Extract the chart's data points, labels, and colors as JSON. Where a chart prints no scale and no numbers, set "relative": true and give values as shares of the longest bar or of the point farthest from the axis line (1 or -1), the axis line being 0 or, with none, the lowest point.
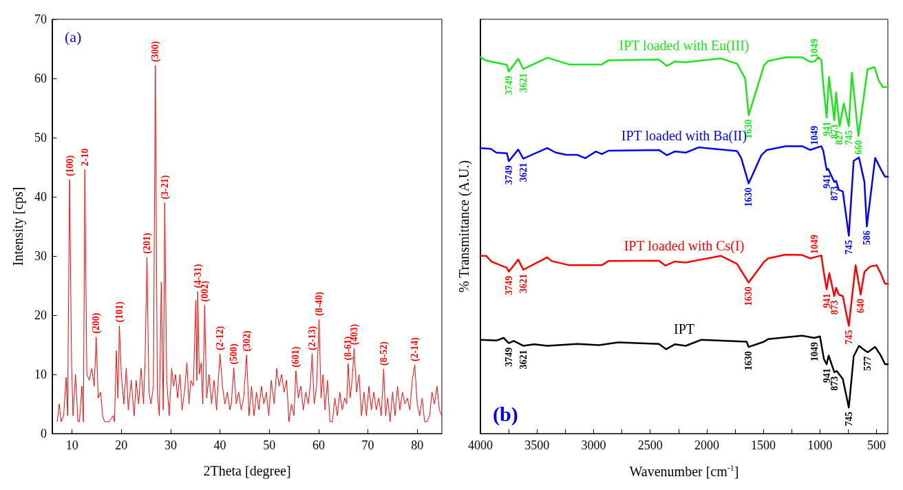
{
  "chart_data": [
    {
      "type": "line",
      "xlabel": "2Theta [degree]",
      "ylabel": "Intensity [cps]",
      "xlim": [
        6,
        85
      ],
      "ylim": [
        0,
        70
      ],
      "xticks": [
        10,
        20,
        30,
        40,
        50,
        60,
        70,
        80
      ],
      "yticks": [
        0,
        10,
        20,
        30,
        40,
        50,
        60,
        70
      ],
      "x": [
        7,
        7.4,
        7.8,
        8.3,
        8.8,
        9.1,
        9.5,
        9.9,
        10.2,
        10.7,
        11.2,
        11.5,
        12,
        12.3,
        12.6,
        13,
        13.5,
        14,
        14.5,
        14.9,
        15.3,
        15.8,
        16.2,
        16.6,
        17.5,
        18.3,
        18.6,
        19,
        19.3,
        19.6,
        20,
        20.5,
        21,
        21.4,
        22,
        22.6,
        23,
        23.5,
        24,
        24.5,
        24.8,
        25.2,
        25.6,
        26,
        26.5,
        26.9,
        27.3,
        27.7,
        28.1,
        28.5,
        28.8,
        29.2,
        29.7,
        30.2,
        30.6,
        31,
        31.4,
        31.9,
        32.3,
        32.8,
        33.3,
        33.7,
        34.1,
        34.6,
        35.1,
        35.3,
        35.5,
        35.8,
        36.2,
        36.5,
        36.9,
        37.3,
        37.8,
        38.3,
        38.8,
        39.3,
        40,
        40.5,
        41,
        41.5,
        42,
        42.3,
        42.8,
        43.3,
        43.8,
        44.3,
        44.8,
        45.4,
        45.9,
        46.4,
        46.9,
        47.4,
        47.9,
        48.4,
        48.9,
        49.4,
        49.9,
        50.4,
        51,
        51.5,
        52,
        52.5,
        53,
        53.5,
        54,
        54.5,
        55,
        55.4,
        55.9,
        56.4,
        56.9,
        57.4,
        57.9,
        58.3,
        58.7,
        59.1,
        59.6,
        60.1,
        60.5,
        60.9,
        61.3,
        61.8,
        62.3,
        62.8,
        63.3,
        63.8,
        64.3,
        64.8,
        65.3,
        65.7,
        66,
        66.4,
        66.8,
        67.2,
        67.7,
        68.2,
        68.7,
        69.2,
        69.7,
        70.2,
        70.7,
        71.2,
        71.7,
        72.2,
        72.7,
        73.2,
        73.6,
        74,
        74.5,
        75,
        75.5,
        76,
        76.5,
        77,
        77.5,
        78,
        78.5,
        79,
        79.5,
        80,
        80.5,
        81,
        81.5,
        82,
        82.5,
        83,
        83.5,
        84,
        84.5,
        85
      ],
      "series": [
        {
          "color": "#ff0000",
          "values": [
            2,
            5,
            2,
            3,
            9.5,
            3,
            42.9,
            12,
            3,
            10,
            2,
            2,
            8,
            2,
            44.6,
            10,
            9,
            11,
            8,
            16.3,
            6,
            7,
            3,
            2,
            2,
            3,
            2,
            14,
            6,
            18.2,
            10,
            5,
            11,
            4,
            9,
            3,
            9,
            5,
            11,
            5,
            12,
            29.8,
            7,
            5,
            8,
            62.2,
            7,
            3,
            25.6,
            4,
            39,
            9,
            3,
            11,
            8,
            10,
            6,
            10,
            4,
            7,
            12,
            5,
            9,
            8,
            22.5,
            9,
            24,
            10,
            12,
            5,
            21.7,
            6,
            10,
            5,
            9,
            4,
            13.5,
            8,
            5,
            7,
            4,
            5,
            11.1,
            5,
            7,
            4,
            6,
            13.3,
            3,
            8,
            3,
            7,
            4,
            8,
            5,
            7,
            3,
            9,
            5,
            11,
            8,
            10,
            7,
            9,
            2,
            5,
            3,
            10.6,
            6,
            8,
            4,
            7,
            5,
            8,
            13.5,
            5,
            8,
            19.3,
            6,
            10,
            4,
            9,
            2,
            2,
            6,
            3,
            7,
            4,
            6,
            5,
            11.8,
            6,
            9,
            14.4,
            7,
            10,
            3,
            7,
            3,
            8,
            4,
            7,
            4,
            6,
            3,
            10.9,
            3,
            6,
            2,
            7,
            3,
            8,
            4,
            7,
            5,
            6,
            4,
            9,
            11.6,
            5,
            3,
            6,
            2,
            2,
            3,
            7,
            5,
            8,
            4,
            3
          ]
        }
      ],
      "annotations": [
        "(a)",
        {
          "text": "(100)",
          "x": 9.5,
          "y": 42.9
        },
        {
          "text": "2-10",
          "x": 12.6,
          "y": 44.6
        },
        {
          "text": "(200)",
          "x": 14.9,
          "y": 16.3
        },
        {
          "text": "(101)",
          "x": 19.6,
          "y": 18.2
        },
        {
          "text": "(201)",
          "x": 25.2,
          "y": 29.8
        },
        {
          "text": "(300)",
          "x": 26.9,
          "y": 62.2
        },
        {
          "text": "(3-21)",
          "x": 28.8,
          "y": 39
        },
        {
          "text": "(4-31)",
          "x": 35.5,
          "y": 24
        },
        {
          "text": "(002)",
          "x": 36.9,
          "y": 21.7
        },
        {
          "text": "(2-12)",
          "x": 40,
          "y": 13.5
        },
        {
          "text": "(500)",
          "x": 42.8,
          "y": 11.1
        },
        {
          "text": "(302)",
          "x": 45.4,
          "y": 13.3
        },
        {
          "text": "(601)",
          "x": 55.4,
          "y": 10.6
        },
        {
          "text": "(2-13)",
          "x": 58.7,
          "y": 13.5
        },
        {
          "text": "(8-40)",
          "x": 60.1,
          "y": 19.3
        },
        {
          "text": "(8-61)",
          "x": 66,
          "y": 11.8
        },
        {
          "text": "(403)",
          "x": 67.2,
          "y": 14.4
        },
        {
          "text": "(8-52)",
          "x": 73.2,
          "y": 10.9
        },
        {
          "text": "(2-14)",
          "x": 79.5,
          "y": 11.6
        }
      ]
    },
    {
      "type": "line",
      "relative": true,
      "tick_labels": "x",
      "xlabel": "Wavenumber [cm$^{-1}$]",
      "ylabel": "% Transmittance (A.U.)",
      "xlim": [
        4000,
        400
      ],
      "xticks": [
        4000,
        {
          "value": 3750,
          "label": null
        },
        3500,
        {
          "value": 3250,
          "label": null
        },
        3000,
        {
          "value": 2750,
          "label": null
        },
        2500,
        {
          "value": 2250,
          "label": null
        },
        2000,
        {
          "value": 1750,
          "label": null
        },
        1500,
        {
          "value": 1250,
          "label": null
        },
        1000,
        {
          "value": 750,
          "label": null
        },
        500
      ],
      "series": [
        {
          "name": "IPT loaded with Eu(III)",
          "color": "#19e619",
          "x": [
            4000,
            3956,
            3766,
            3749,
            3666,
            3621,
            3408,
            3215,
            2927,
            2869,
            2423,
            2353,
            2283,
            2186,
            1877,
            1732,
            1660,
            1630,
            1494,
            1458,
            1303,
            1158,
            1085,
            1049,
            1014,
            988,
            970,
            941,
            920,
            873,
            858,
            827,
            790,
            745,
            718,
            660,
            580,
            518,
            482,
            445,
            400
          ],
          "values": [
            1,
            0.991,
            0.979,
            0.961,
            0.995,
            0.968,
            0.998,
            0.98,
            0.98,
            0.991,
            0.993,
            0.976,
            0.988,
            0.986,
            0.996,
            0.982,
            0.942,
            0.845,
            0.978,
            0.989,
            0.999,
            0.999,
            0.987,
            0.988,
            0.999,
            0.992,
            0.924,
            0.839,
            0.947,
            0.832,
            0.906,
            0.816,
            0.876,
            0.816,
            0.958,
            0.79,
            0.967,
            0.973,
            0.938,
            0.92,
            0.92
          ]
        },
        {
          "name": "IPT loaded with Ba(II)",
          "color": "#0000ff",
          "x": [
            4000,
            3909,
            3859,
            3766,
            3749,
            3666,
            3621,
            3410,
            3334,
            3238,
            3144,
            3074,
            2980,
            2927,
            2869,
            2423,
            2353,
            2283,
            2186,
            2071,
            1732,
            1696,
            1630,
            1518,
            1470,
            1303,
            1158,
            1085,
            1049,
            988,
            970,
            941,
            928,
            873,
            857,
            833,
            798,
            745,
            702,
            655,
            607,
            586,
            512,
            464,
            425,
            400
          ],
          "values": [
            0.758,
            0.756,
            0.746,
            0.744,
            0.723,
            0.754,
            0.73,
            0.758,
            0.746,
            0.74,
            0.74,
            0.731,
            0.749,
            0.742,
            0.751,
            0.753,
            0.739,
            0.749,
            0.746,
            0.76,
            0.75,
            0.732,
            0.664,
            0.739,
            0.753,
            0.763,
            0.763,
            0.753,
            0.757,
            0.763,
            0.75,
            0.7,
            0.703,
            0.668,
            0.671,
            0.647,
            0.643,
            0.525,
            0.724,
            0.733,
            0.668,
            0.55,
            0.732,
            0.703,
            0.682,
            0.682
          ]
        },
        {
          "name": "IPT loaded with Cs(I)",
          "color": "#ff0000",
          "x": [
            4000,
            3950,
            3900,
            3766,
            3749,
            3666,
            3621,
            3410,
            3370,
            3215,
            2927,
            2869,
            2423,
            2365,
            2283,
            2186,
            1877,
            1732,
            1630,
            1494,
            1458,
            1303,
            1158,
            1085,
            1049,
            988,
            965,
            941,
            918,
            873,
            857,
            833,
            798,
            745,
            685,
            640,
            607,
            560,
            500,
            464,
            425,
            400
          ],
          "values": [
            0.472,
            0.472,
            0.456,
            0.44,
            0.43,
            0.462,
            0.435,
            0.468,
            0.458,
            0.447,
            0.447,
            0.458,
            0.459,
            0.446,
            0.457,
            0.454,
            0.472,
            0.45,
            0.401,
            0.456,
            0.465,
            0.475,
            0.474,
            0.465,
            0.468,
            0.473,
            0.426,
            0.383,
            0.426,
            0.365,
            0.387,
            0.369,
            0.365,
            0.286,
            0.447,
            0.369,
            0.429,
            0.443,
            0.447,
            0.426,
            0.398,
            0.398
          ]
        },
        {
          "name": "IPT",
          "color": "#000000",
          "x": [
            4000,
            3859,
            3795,
            3749,
            3706,
            3621,
            3525,
            3408,
            3144,
            2951,
            2784,
            2423,
            2358,
            2283,
            2186,
            2048,
            1648,
            1630,
            1494,
            1458,
            1158,
            1049,
            1000,
            965,
            941,
            923,
            873,
            851,
            798,
            745,
            702,
            655,
            595,
            577,
            512,
            464,
            425,
            400
          ],
          "values": [
            0.249,
            0.247,
            0.254,
            0.24,
            0.246,
            0.233,
            0.237,
            0.233,
            0.238,
            0.235,
            0.242,
            0.238,
            0.224,
            0.237,
            0.233,
            0.249,
            0.244,
            0.23,
            0.244,
            0.251,
            0.26,
            0.254,
            0.258,
            0.198,
            0.184,
            0.207,
            0.163,
            0.166,
            0.145,
            0.069,
            0.205,
            0.233,
            0.219,
            0.216,
            0.23,
            0.208,
            0.184,
            0.184
          ]
        }
      ],
      "annotations": [
        "(b)",
        {
          "text": "3749",
          "x": 3749,
          "y": 0.961
        },
        {
          "text": "3621",
          "x": 3621,
          "y": 0.968
        },
        {
          "text": "1630",
          "x": 1630,
          "y": 0.845
        },
        {
          "text": "1049",
          "x": 1049,
          "y": 0.988
        },
        {
          "text": "941",
          "x": 941,
          "y": 0.839
        },
        {
          "text": "873",
          "x": 873,
          "y": 0.832
        },
        {
          "text": "827",
          "x": 827,
          "y": 0.816
        },
        {
          "text": "745",
          "x": 745,
          "y": 0.816
        },
        {
          "text": "660",
          "x": 660,
          "y": 0.79
        },
        {
          "text": "3749",
          "x": 3749,
          "y": 0.723
        },
        {
          "text": "3621",
          "x": 3621,
          "y": 0.73
        },
        {
          "text": "1630",
          "x": 1630,
          "y": 0.664
        },
        {
          "text": "1049",
          "x": 1049,
          "y": 0.757
        },
        {
          "text": "941",
          "x": 941,
          "y": 0.7
        },
        {
          "text": "873",
          "x": 873,
          "y": 0.668
        },
        {
          "text": "745",
          "x": 745,
          "y": 0.525
        },
        {
          "text": "586",
          "x": 586,
          "y": 0.55
        },
        {
          "text": "3749",
          "x": 3749,
          "y": 0.43
        },
        {
          "text": "3621",
          "x": 3621,
          "y": 0.435
        },
        {
          "text": "1630",
          "x": 1630,
          "y": 0.401
        },
        {
          "text": "1049",
          "x": 1049,
          "y": 0.468
        },
        {
          "text": "941",
          "x": 941,
          "y": 0.383
        },
        {
          "text": "873",
          "x": 873,
          "y": 0.365
        },
        {
          "text": "745",
          "x": 745,
          "y": 0.286
        },
        {
          "text": "640",
          "x": 640,
          "y": 0.369
        },
        {
          "text": "3749",
          "x": 3749,
          "y": 0.24
        },
        {
          "text": "3621",
          "x": 3621,
          "y": 0.233
        },
        {
          "text": "1630",
          "x": 1630,
          "y": 0.23
        },
        {
          "text": "1049",
          "x": 1049,
          "y": 0.254
        },
        {
          "text": "941",
          "x": 941,
          "y": 0.184
        },
        {
          "text": "873",
          "x": 873,
          "y": 0.163
        },
        {
          "text": "745",
          "x": 745,
          "y": 0.069
        },
        {
          "text": "577",
          "x": 577,
          "y": 0.216
        }
      ]
    }
  ]
}
